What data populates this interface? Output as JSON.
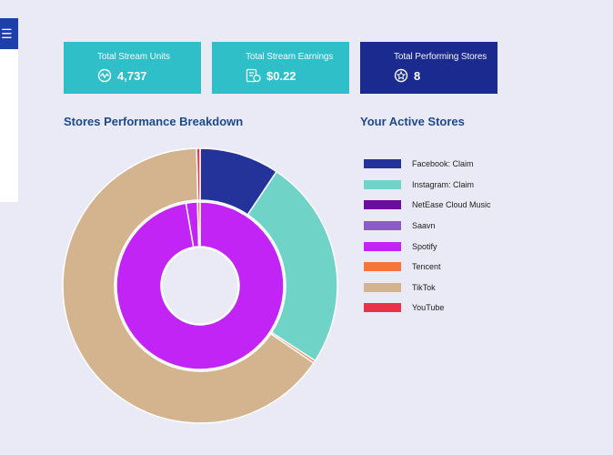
{
  "header": {
    "menu_icon": "hamburger-menu-icon"
  },
  "cards": [
    {
      "title": "Total Stream Units",
      "value": "4,737",
      "icon": "stream-wave-icon",
      "color": "#2fbfc9"
    },
    {
      "title": "Total Stream Earnings",
      "value": "$0.22",
      "icon": "earnings-receipt-icon",
      "color": "#2fbfc9"
    },
    {
      "title": "Total Performing Stores",
      "value": "8",
      "icon": "star-badge-icon",
      "color": "#1b2a8e"
    }
  ],
  "breakdown": {
    "title": "Stores Performance Breakdown"
  },
  "active_stores": {
    "title": "Your Active Stores"
  },
  "legend": [
    {
      "label": "Facebook: Claim",
      "color": "#24339a"
    },
    {
      "label": "Instagram: Claim",
      "color": "#6fd3c8"
    },
    {
      "label": "NetEase Cloud Music",
      "color": "#6a0d9e"
    },
    {
      "label": "Saavn",
      "color": "#8c5cc6"
    },
    {
      "label": "Spotify",
      "color": "#c124f4"
    },
    {
      "label": "Tencent",
      "color": "#f5763a"
    },
    {
      "label": "TikTok",
      "color": "#d4b48e"
    },
    {
      "label": "YouTube",
      "color": "#e8334d"
    }
  ],
  "chart_data": {
    "type": "pie",
    "subtype": "nested-donut",
    "title": "",
    "categories": [
      "Facebook: Claim",
      "Instagram: Claim",
      "NetEase Cloud Music",
      "Saavn",
      "Spotify",
      "Tencent",
      "TikTok",
      "YouTube"
    ],
    "series": [
      {
        "ring": "outer",
        "values": [
          9.4,
          24.8,
          0,
          0,
          0,
          0.3,
          65.1,
          0.4
        ]
      },
      {
        "ring": "inner",
        "values": [
          0,
          0,
          0,
          0,
          97.3,
          0.5,
          0,
          0
        ],
        "extra_slices": [
          {
            "color": "#c124f4",
            "value": 2.2
          }
        ]
      }
    ]
  }
}
